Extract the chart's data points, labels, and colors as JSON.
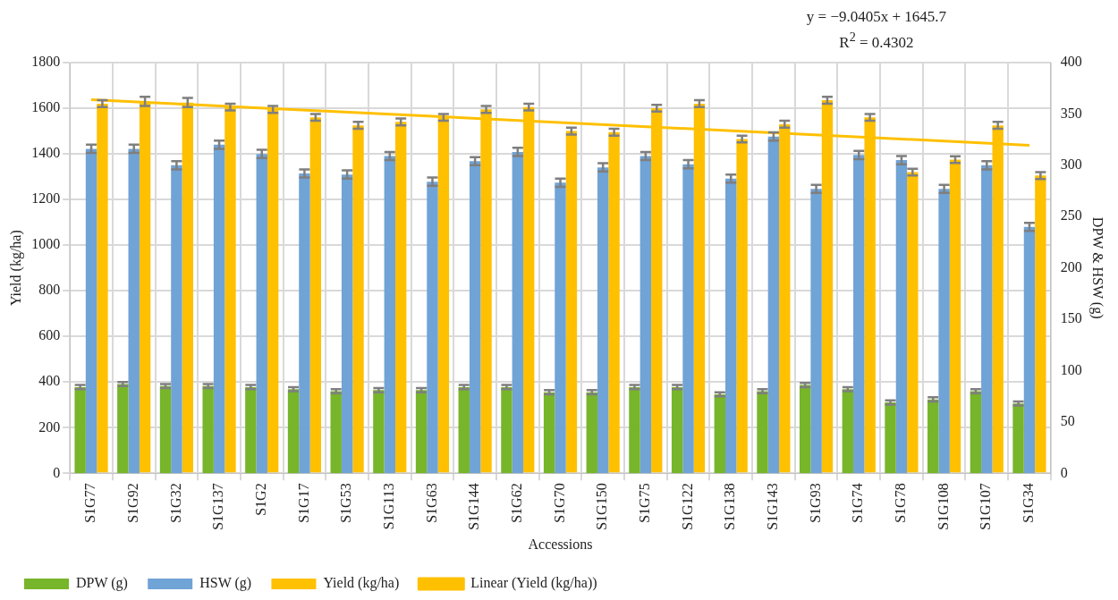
{
  "chart_data": {
    "type": "bar",
    "xlabel": "Accessions",
    "ylabel": "Yield (kg/ha)",
    "y2label": "DPW & HSW (g)",
    "annotations": [
      "y = −9.0405x + 1645.7",
      "R$^{2}$ = 0.4302"
    ],
    "categories": [
      "S1G77",
      "S1G92",
      "S1G32",
      "S1G137",
      "S1G2",
      "S1G17",
      "S1G53",
      "S1G113",
      "S1G63",
      "S1G144",
      "S1G62",
      "S1G70",
      "S1G150",
      "S1G75",
      "S1G122",
      "S1G138",
      "S1G143",
      "S1G93",
      "S1G74",
      "S1G78",
      "S1G108",
      "S1G107",
      "S1G34"
    ],
    "series": [
      {
        "name": "DPW (g)",
        "axis": "y2",
        "color": "#77b52a",
        "values": [
          84,
          87,
          85,
          85,
          84,
          82,
          80,
          81,
          81,
          84,
          84,
          79,
          79,
          84,
          84,
          77,
          80,
          86,
          82,
          69,
          72,
          80,
          68
        ],
        "errors": [
          2,
          2,
          2,
          2,
          2,
          2,
          2,
          2,
          2,
          2,
          2,
          2,
          2,
          2,
          2,
          2,
          2,
          2,
          2,
          2,
          2,
          2,
          2
        ]
      },
      {
        "name": "HSW (g)",
        "axis": "y2",
        "color": "#70a3d6",
        "values": [
          316,
          316,
          300,
          320,
          311,
          292,
          291,
          309,
          284,
          304,
          313,
          283,
          298,
          309,
          301,
          287,
          328,
          277,
          310,
          305,
          277,
          300,
          240
        ],
        "errors": [
          4,
          4,
          4,
          4,
          4,
          4,
          4,
          4,
          4,
          4,
          4,
          4,
          4,
          4,
          4,
          4,
          4,
          4,
          4,
          4,
          4,
          4,
          4
        ]
      },
      {
        "name": "Yield (kg/ha)",
        "color": "#ffc000",
        "values": [
          1620,
          1630,
          1625,
          1605,
          1595,
          1560,
          1525,
          1540,
          1560,
          1595,
          1605,
          1500,
          1495,
          1600,
          1620,
          1465,
          1530,
          1635,
          1560,
          1320,
          1375,
          1525,
          1305
        ],
        "errors": [
          15,
          20,
          20,
          15,
          15,
          15,
          15,
          15,
          15,
          15,
          15,
          15,
          15,
          15,
          15,
          15,
          15,
          15,
          15,
          15,
          15,
          15,
          15
        ]
      },
      {
        "name": "Linear (Yield (kg/ha))",
        "type": "line",
        "color": "#ffc000",
        "x": [
          "S1G77",
          "S1G34"
        ],
        "values": [
          1637,
          1438
        ]
      }
    ],
    "ylim": [
      0,
      1800
    ],
    "yticks": [
      0,
      200,
      400,
      600,
      800,
      1000,
      1200,
      1400,
      1600,
      1800
    ],
    "y2lim": [
      0,
      400
    ],
    "y2ticks": [
      0,
      50,
      100,
      150,
      200,
      250,
      300,
      350,
      400
    ],
    "grid": true,
    "legend": "bottom"
  }
}
